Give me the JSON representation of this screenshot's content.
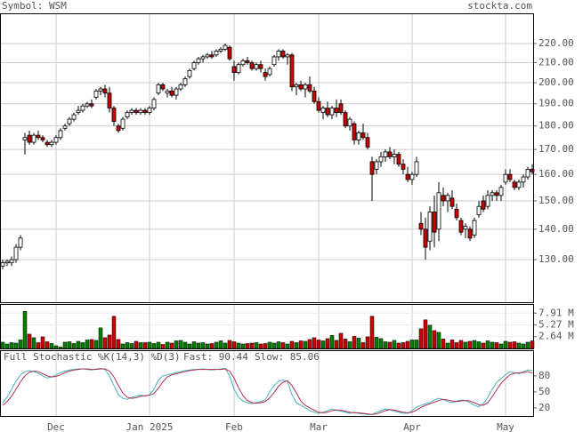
{
  "header": {
    "symbol": "Symbol: WSM",
    "site": "stockta.com"
  },
  "chart_data": [
    {
      "type": "candlestick",
      "log_scale": true,
      "grid": true,
      "up_color": "#ffffff",
      "down_color": "#cc0000",
      "ylim": [
        117.2,
        236.8
      ],
      "yticks": [
        {
          "value": 130,
          "label": "130.00"
        },
        {
          "value": 140,
          "label": "140.00"
        },
        {
          "value": 150,
          "label": "150.00"
        },
        {
          "value": 160,
          "label": "160.00"
        },
        {
          "value": 170,
          "label": "170.00"
        },
        {
          "value": 180,
          "label": "180.00"
        },
        {
          "value": 190,
          "label": "190.00"
        },
        {
          "value": 200,
          "label": "200.00"
        },
        {
          "value": 210,
          "label": "210.00"
        },
        {
          "value": 220,
          "label": "220.00"
        }
      ],
      "ohlc": [
        [
          128,
          130,
          127,
          129
        ],
        [
          129,
          130,
          128,
          129.5
        ],
        [
          129,
          131,
          128,
          130
        ],
        [
          130,
          135,
          129,
          134
        ],
        [
          134,
          138,
          133,
          137
        ],
        [
          174,
          177,
          168,
          175
        ],
        [
          176,
          178,
          172,
          173
        ],
        [
          173,
          177,
          172,
          176
        ],
        [
          176,
          178,
          174,
          175
        ],
        [
          175,
          176,
          173,
          174
        ],
        [
          173,
          174,
          171,
          172
        ],
        [
          172,
          174,
          171,
          173
        ],
        [
          173,
          176,
          172,
          175
        ],
        [
          175,
          179,
          174,
          178
        ],
        [
          179,
          181,
          178,
          180
        ],
        [
          181,
          184,
          180,
          183
        ],
        [
          183,
          186,
          182,
          185
        ],
        [
          186,
          189,
          185,
          187
        ],
        [
          187,
          190,
          186,
          189
        ],
        [
          189,
          191,
          188,
          190
        ],
        [
          190,
          192,
          188,
          189
        ],
        [
          193,
          197,
          192,
          196
        ],
        [
          196,
          198,
          194,
          197
        ],
        [
          197,
          199,
          193,
          195
        ],
        [
          195,
          198,
          186,
          188
        ],
        [
          188,
          189,
          180,
          182
        ],
        [
          180,
          181,
          177,
          178
        ],
        [
          179,
          184,
          178,
          183
        ],
        [
          184,
          187,
          183,
          186
        ],
        [
          186,
          188,
          185,
          187
        ],
        [
          187,
          188,
          185,
          186
        ],
        [
          186,
          188,
          185,
          187
        ],
        [
          187,
          188,
          185,
          186
        ],
        [
          186,
          189,
          185,
          188
        ],
        [
          188,
          193,
          187,
          192
        ],
        [
          195,
          200,
          194,
          199
        ],
        [
          199,
          200,
          196,
          197
        ],
        [
          195,
          197,
          193,
          196
        ],
        [
          196,
          198,
          193,
          194
        ],
        [
          194,
          198,
          192,
          197
        ],
        [
          197,
          200,
          196,
          199
        ],
        [
          199,
          203,
          198,
          202
        ],
        [
          203,
          207,
          202,
          206
        ],
        [
          207,
          211,
          206,
          210
        ],
        [
          210,
          213,
          209,
          212
        ],
        [
          212,
          214,
          210,
          213
        ],
        [
          213,
          215,
          212,
          214
        ],
        [
          214,
          216,
          212,
          213
        ],
        [
          214,
          217,
          213,
          216
        ],
        [
          216,
          218,
          215,
          217
        ],
        [
          217,
          220,
          216,
          219
        ],
        [
          218,
          219,
          211,
          212
        ],
        [
          208,
          211,
          201,
          205
        ],
        [
          205,
          210,
          204,
          209
        ],
        [
          209,
          212,
          208,
          211
        ],
        [
          211,
          213,
          209,
          210
        ],
        [
          210,
          211,
          206,
          207
        ],
        [
          207,
          210,
          206,
          209
        ],
        [
          209,
          211,
          205,
          207
        ],
        [
          205,
          207,
          201,
          203
        ],
        [
          204,
          208,
          203,
          207
        ],
        [
          209,
          214,
          208,
          213
        ],
        [
          213,
          217,
          211,
          216
        ],
        [
          216,
          217,
          212,
          213
        ],
        [
          213,
          215,
          209,
          214
        ],
        [
          214,
          215,
          196,
          198
        ],
        [
          198,
          200,
          194,
          199
        ],
        [
          199,
          201,
          196,
          197
        ],
        [
          197,
          200,
          193,
          199
        ],
        [
          199,
          203,
          195,
          196
        ],
        [
          196,
          198,
          190,
          191
        ],
        [
          191,
          193,
          186,
          187
        ],
        [
          186,
          189,
          183,
          188
        ],
        [
          188,
          191,
          184,
          185
        ],
        [
          185,
          189,
          183,
          188
        ],
        [
          188,
          192,
          184,
          186
        ],
        [
          190,
          192,
          185,
          186
        ],
        [
          186,
          187,
          179,
          180
        ],
        [
          180,
          184,
          178,
          183
        ],
        [
          181,
          182,
          172,
          174
        ],
        [
          174,
          178,
          172,
          177
        ],
        [
          177,
          181,
          174,
          175
        ],
        [
          175,
          177,
          170,
          171
        ],
        [
          165,
          167,
          150,
          160
        ],
        [
          162,
          166,
          160,
          165
        ],
        [
          165,
          169,
          163,
          167
        ],
        [
          167,
          170,
          165,
          169
        ],
        [
          169,
          171,
          166,
          167
        ],
        [
          167,
          170,
          164,
          168
        ],
        [
          168,
          169,
          163,
          164
        ],
        [
          164,
          166,
          160,
          162
        ],
        [
          160,
          163,
          157,
          158
        ],
        [
          158,
          161,
          156,
          160
        ],
        [
          160,
          167,
          159,
          165
        ],
        [
          142,
          146,
          138,
          140
        ],
        [
          140,
          144,
          130,
          134
        ],
        [
          136,
          148,
          133,
          146
        ],
        [
          146,
          152,
          134,
          139
        ],
        [
          140,
          157,
          136,
          153
        ],
        [
          152,
          155,
          148,
          150
        ],
        [
          150,
          153,
          146,
          152
        ],
        [
          151,
          154,
          147,
          148
        ],
        [
          147,
          149,
          143,
          144
        ],
        [
          143,
          144,
          138,
          139
        ],
        [
          140,
          142,
          137,
          141
        ],
        [
          140,
          141,
          136,
          137
        ],
        [
          138,
          144,
          137,
          143
        ],
        [
          145,
          150,
          144,
          148
        ],
        [
          150,
          152,
          146,
          147
        ],
        [
          148,
          154,
          147,
          152
        ],
        [
          152,
          154,
          150,
          153
        ],
        [
          153,
          154,
          150,
          152
        ],
        [
          152,
          156,
          150,
          155
        ],
        [
          157,
          162,
          156,
          160
        ],
        [
          160,
          162,
          157,
          158
        ],
        [
          157,
          158,
          154,
          155
        ],
        [
          155,
          158,
          154,
          157
        ],
        [
          157,
          160,
          155,
          159
        ],
        [
          159,
          163,
          158,
          162
        ],
        [
          162,
          164,
          160,
          161
        ]
      ]
    },
    {
      "type": "volume",
      "up_color": "#008000",
      "down_color": "#cc0000",
      "ylim": [
        0,
        9.95
      ],
      "yticks": [
        {
          "value": 2.64,
          "label": "2.64 M"
        },
        {
          "value": 5.27,
          "label": "5.27 M"
        },
        {
          "value": 7.91,
          "label": "7.91 M"
        }
      ],
      "values": [
        1.4,
        1.0,
        1.3,
        1.2,
        1.9,
        8.3,
        3.2,
        2.4,
        1.3,
        2.6,
        1.5,
        1.1,
        0.6,
        0.3,
        1.4,
        1.5,
        1.1,
        1.6,
        1.3,
        1.9,
        2.0,
        1.8,
        4.6,
        2.4,
        3.0,
        7.2,
        2.0,
        1.0,
        1.3,
        1.1,
        1.6,
        1.3,
        1.3,
        1.4,
        1.1,
        1.4,
        0.9,
        1.4,
        1.2,
        1.7,
        1.8,
        1.4,
        1.0,
        1.5,
        1.2,
        1.3,
        1.0,
        1.1,
        1.4,
        1.7,
        1.2,
        1.8,
        1.5,
        1.2,
        1.0,
        1.1,
        1.2,
        1.3,
        1.0,
        1.1,
        1.4,
        1.2,
        1.5,
        1.3,
        1.0,
        1.6,
        1.3,
        1.7,
        1.6,
        2.0,
        2.4,
        1.9,
        1.7,
        2.2,
        2.9,
        1.8,
        3.4,
        2.1,
        1.5,
        2.7,
        2.3,
        1.3,
        2.6,
        7.2,
        2.5,
        2.2,
        1.5,
        1.4,
        1.8,
        1.2,
        1.3,
        1.6,
        1.9,
        1.9,
        4.4,
        6.4,
        5.2,
        4.0,
        3.6,
        2.1,
        1.2,
        1.9,
        1.3,
        1.8,
        1.4,
        1.6,
        1.8,
        1.5,
        1.2,
        1.7,
        1.4,
        1.3,
        1.0,
        1.6,
        1.4,
        1.5,
        1.2,
        1.0,
        1.4,
        1.7
      ]
    },
    {
      "type": "line",
      "title": "Full Stochastic %K(14,3) %D(3)",
      "ylim": [
        5,
        128
      ],
      "yticks": [
        20,
        50,
        80
      ],
      "categories": [
        null,
        null,
        null,
        null,
        null,
        null,
        null,
        null,
        null,
        null,
        null,
        null,
        "Dec",
        null,
        null,
        null,
        null,
        null,
        null,
        null,
        null,
        null,
        null,
        null,
        null,
        null,
        null,
        null,
        null,
        null,
        null,
        null,
        null,
        "Jan 2025",
        null,
        null,
        null,
        null,
        null,
        null,
        null,
        null,
        null,
        null,
        null,
        null,
        null,
        null,
        null,
        null,
        null,
        null,
        "Feb",
        null,
        null,
        null,
        null,
        null,
        null,
        null,
        null,
        null,
        null,
        null,
        null,
        null,
        null,
        null,
        null,
        null,
        null,
        "Mar",
        null,
        null,
        null,
        null,
        null,
        null,
        null,
        null,
        null,
        null,
        null,
        null,
        null,
        null,
        null,
        null,
        null,
        null,
        null,
        null,
        "Apr",
        null,
        null,
        null,
        null,
        null,
        null,
        null,
        null,
        null,
        null,
        null,
        null,
        null,
        null,
        null,
        null,
        null,
        null,
        null,
        null,
        "May",
        null,
        null,
        null,
        null,
        null,
        null
      ],
      "series": [
        {
          "name": "Fast: 90.44",
          "color": "#48b4c0",
          "values": [
            30,
            40,
            55,
            70,
            82,
            88,
            90,
            88,
            85,
            80,
            76,
            78,
            82,
            86,
            89,
            91,
            92,
            93,
            93,
            92,
            91,
            93,
            94,
            92,
            80,
            62,
            45,
            38,
            36,
            40,
            42,
            44,
            42,
            45,
            55,
            72,
            80,
            82,
            84,
            86,
            88,
            90,
            91,
            92,
            92,
            93,
            92,
            91,
            92,
            93,
            94,
            80,
            55,
            40,
            33,
            30,
            28,
            30,
            32,
            35,
            50,
            62,
            70,
            72,
            70,
            45,
            30,
            25,
            20,
            15,
            12,
            10,
            12,
            15,
            18,
            16,
            14,
            12,
            10,
            12,
            10,
            9,
            8,
            8,
            12,
            15,
            18,
            17,
            14,
            12,
            10,
            10,
            15,
            22,
            25,
            28,
            30,
            35,
            38,
            36,
            32,
            30,
            33,
            35,
            34,
            30,
            25,
            22,
            28,
            40,
            55,
            68,
            75,
            82,
            88,
            86,
            84,
            88,
            91,
            90.44
          ]
        },
        {
          "name": "Slow: 85.06",
          "color": "#b03050",
          "values": [
            25,
            32,
            42,
            55,
            69,
            80,
            87,
            89,
            88,
            84,
            80,
            78,
            79,
            82,
            86,
            89,
            91,
            92,
            93,
            93,
            92,
            92,
            93,
            93,
            89,
            78,
            62,
            48,
            40,
            38,
            39,
            42,
            43,
            44,
            47,
            57,
            69,
            78,
            82,
            84,
            86,
            88,
            90,
            91,
            92,
            92,
            92,
            92,
            92,
            92,
            93,
            89,
            76,
            58,
            43,
            34,
            30,
            29,
            30,
            32,
            39,
            49,
            61,
            68,
            71,
            62,
            48,
            33,
            25,
            20,
            16,
            12,
            11,
            12,
            15,
            16,
            16,
            14,
            12,
            11,
            11,
            10,
            9,
            8,
            9,
            12,
            15,
            17,
            16,
            14,
            12,
            11,
            12,
            16,
            21,
            25,
            28,
            31,
            34,
            36,
            35,
            33,
            32,
            33,
            34,
            33,
            30,
            26,
            25,
            30,
            41,
            54,
            66,
            75,
            82,
            85,
            86,
            86,
            88,
            85.06
          ]
        }
      ]
    }
  ]
}
